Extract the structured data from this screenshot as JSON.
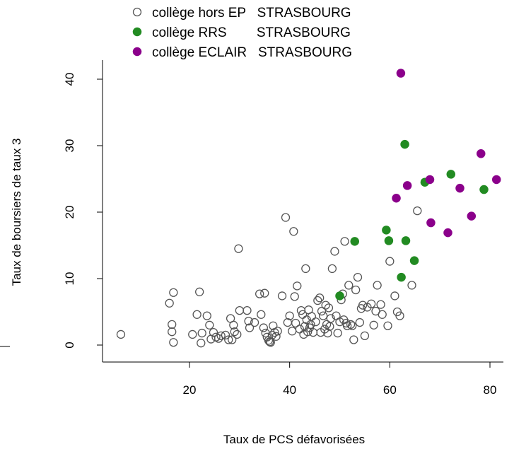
{
  "chart_data": {
    "type": "scatter",
    "title": "",
    "xlabel": "Taux de PCS défavorisées",
    "ylabel": "Taux de boursiers de taux 3",
    "xlim": [
      0,
      85
    ],
    "ylim": [
      -3,
      43
    ],
    "x_ticks": [
      "20",
      "40",
      "60",
      "80"
    ],
    "y_ticks": [
      "0",
      "10",
      "20",
      "30",
      "40"
    ],
    "grid": false,
    "legend_position": "top",
    "series": [
      {
        "name": "collège hors EP   STRASBOURG",
        "marker": "open-circle",
        "color": "#555555",
        "points": [
          [
            6.3,
            1.6
          ],
          [
            16.0,
            6.3
          ],
          [
            16.5,
            3.1
          ],
          [
            16.5,
            2.0
          ],
          [
            16.8,
            7.9
          ],
          [
            16.8,
            0.4
          ],
          [
            20.6,
            1.6
          ],
          [
            21.5,
            4.6
          ],
          [
            22.0,
            8.0
          ],
          [
            22.3,
            0.3
          ],
          [
            22.5,
            1.8
          ],
          [
            23.5,
            4.4
          ],
          [
            24.0,
            3.0
          ],
          [
            24.3,
            0.9
          ],
          [
            24.8,
            1.9
          ],
          [
            25.3,
            1.2
          ],
          [
            25.8,
            1.0
          ],
          [
            26.3,
            1.4
          ],
          [
            27.2,
            1.5
          ],
          [
            27.8,
            0.8
          ],
          [
            28.2,
            4.0
          ],
          [
            28.5,
            0.8
          ],
          [
            28.8,
            3.0
          ],
          [
            29.0,
            2.0
          ],
          [
            29.5,
            1.6
          ],
          [
            29.8,
            14.5
          ],
          [
            30.0,
            5.2
          ],
          [
            31.5,
            5.2
          ],
          [
            31.8,
            3.6
          ],
          [
            32.0,
            2.6
          ],
          [
            33.0,
            3.4
          ],
          [
            34.0,
            7.7
          ],
          [
            34.3,
            4.6
          ],
          [
            34.8,
            2.6
          ],
          [
            35.0,
            7.8
          ],
          [
            35.2,
            1.8
          ],
          [
            35.5,
            1.2
          ],
          [
            35.8,
            0.7
          ],
          [
            36.0,
            0.5
          ],
          [
            36.2,
            0.4
          ],
          [
            36.5,
            1.5
          ],
          [
            36.7,
            2.9
          ],
          [
            37.0,
            1.9
          ],
          [
            37.3,
            1.3
          ],
          [
            37.6,
            2.1
          ],
          [
            38.5,
            7.4
          ],
          [
            39.2,
            19.2
          ],
          [
            39.6,
            3.4
          ],
          [
            40.0,
            4.4
          ],
          [
            40.5,
            2.1
          ],
          [
            40.8,
            17.1
          ],
          [
            41.0,
            7.3
          ],
          [
            41.2,
            3.3
          ],
          [
            41.5,
            8.9
          ],
          [
            42.0,
            2.4
          ],
          [
            42.3,
            5.2
          ],
          [
            42.6,
            4.6
          ],
          [
            42.8,
            1.6
          ],
          [
            43.0,
            2.8
          ],
          [
            43.2,
            11.5
          ],
          [
            43.4,
            3.8
          ],
          [
            43.6,
            2.0
          ],
          [
            43.8,
            5.3
          ],
          [
            44.0,
            2.6
          ],
          [
            44.2,
            3.1
          ],
          [
            44.4,
            4.3
          ],
          [
            44.7,
            1.9
          ],
          [
            45.2,
            3.5
          ],
          [
            45.6,
            6.7
          ],
          [
            46.0,
            7.1
          ],
          [
            46.2,
            1.9
          ],
          [
            46.4,
            5.1
          ],
          [
            46.7,
            4.4
          ],
          [
            47.0,
            2.4
          ],
          [
            47.2,
            6.0
          ],
          [
            47.4,
            3.1
          ],
          [
            47.6,
            1.8
          ],
          [
            47.8,
            5.6
          ],
          [
            48.0,
            2.8
          ],
          [
            48.2,
            4.0
          ],
          [
            48.5,
            11.5
          ],
          [
            49.0,
            14.1
          ],
          [
            49.3,
            4.4
          ],
          [
            49.6,
            1.8
          ],
          [
            50.0,
            3.5
          ],
          [
            50.3,
            6.8
          ],
          [
            50.6,
            7.7
          ],
          [
            50.8,
            3.8
          ],
          [
            51.0,
            15.6
          ],
          [
            51.3,
            3.3
          ],
          [
            51.5,
            2.9
          ],
          [
            51.8,
            9.0
          ],
          [
            52.2,
            3.1
          ],
          [
            52.5,
            2.9
          ],
          [
            52.8,
            0.8
          ],
          [
            53.2,
            8.3
          ],
          [
            53.6,
            10.2
          ],
          [
            54.0,
            3.4
          ],
          [
            54.3,
            5.5
          ],
          [
            54.6,
            6.0
          ],
          [
            55.0,
            1.4
          ],
          [
            55.5,
            5.7
          ],
          [
            56.3,
            6.2
          ],
          [
            56.8,
            3.0
          ],
          [
            57.2,
            5.1
          ],
          [
            57.5,
            9.0
          ],
          [
            58.2,
            6.1
          ],
          [
            58.5,
            4.6
          ],
          [
            59.6,
            2.9
          ],
          [
            60.0,
            12.6
          ],
          [
            61.0,
            7.4
          ],
          [
            61.5,
            5.0
          ],
          [
            62.0,
            4.4
          ],
          [
            64.4,
            9.0
          ],
          [
            65.5,
            20.2
          ]
        ]
      },
      {
        "name": "collège RRS        STRASBOURG",
        "marker": "filled-circle",
        "color": "#228b22",
        "points": [
          [
            50.0,
            7.4
          ],
          [
            53.0,
            15.6
          ],
          [
            59.3,
            17.3
          ],
          [
            59.8,
            15.7
          ],
          [
            62.3,
            10.2
          ],
          [
            63.0,
            30.2
          ],
          [
            63.2,
            15.7
          ],
          [
            64.9,
            12.7
          ],
          [
            67.0,
            24.5
          ],
          [
            72.2,
            25.7
          ],
          [
            78.8,
            23.4
          ]
        ]
      },
      {
        "name": "collège ECLAIR   STRASBOURG",
        "marker": "filled-circle",
        "color": "#8b008b",
        "points": [
          [
            62.2,
            40.9
          ],
          [
            61.3,
            22.1
          ],
          [
            63.5,
            24.0
          ],
          [
            68.0,
            24.9
          ],
          [
            68.2,
            18.4
          ],
          [
            71.6,
            16.9
          ],
          [
            74.0,
            23.6
          ],
          [
            76.3,
            19.4
          ],
          [
            78.2,
            28.8
          ],
          [
            81.3,
            24.9
          ]
        ]
      }
    ]
  }
}
